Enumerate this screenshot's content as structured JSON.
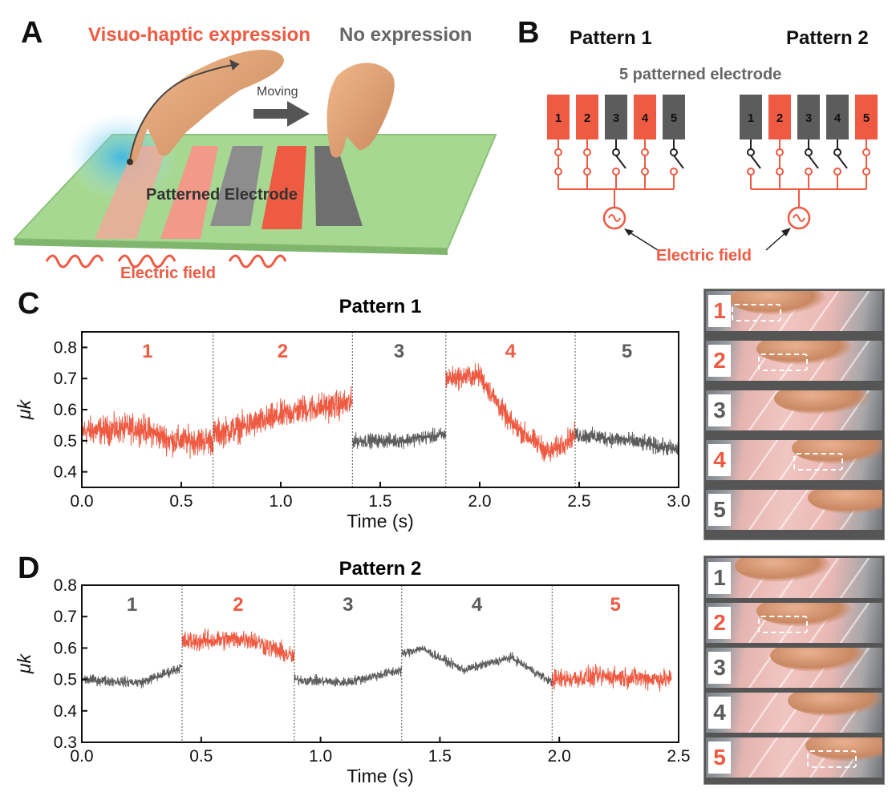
{
  "panel_letters": {
    "a": "A",
    "b": "B",
    "c": "C",
    "d": "D"
  },
  "panel_a": {
    "visuo_haptic_label": "Visuo-haptic expression",
    "no_expression_label": "No expression",
    "moving_label": "Moving",
    "electrode_label": "Patterned Electrode",
    "field_label": "Electric field"
  },
  "panel_b": {
    "pattern1_title": "Pattern 1",
    "pattern2_title": "Pattern 2",
    "subtitle": "5 patterned electrode",
    "field_label": "Electric field",
    "electrode_numbers": [
      "1",
      "2",
      "3",
      "4",
      "5"
    ],
    "pattern1_active": [
      true,
      true,
      false,
      true,
      false
    ],
    "pattern2_active": [
      false,
      true,
      false,
      false,
      true
    ]
  },
  "colors": {
    "active": "#ee5a42",
    "inactive": "#5c5c5c",
    "divider": "#555555"
  },
  "chart_data": [
    {
      "type": "line",
      "title": "Pattern 1",
      "xlabel": "Time (s)",
      "ylabel": "μk",
      "xlim": [
        0.0,
        3.0
      ],
      "ylim": [
        0.35,
        0.85
      ],
      "xticks": [
        "0.0",
        "0.5",
        "1.0",
        "1.5",
        "2.0",
        "2.5",
        "3.0"
      ],
      "yticks": [
        "0.4",
        "0.5",
        "0.6",
        "0.7",
        "0.8"
      ],
      "boundaries": [
        0.66,
        1.36,
        1.83,
        2.48
      ],
      "segment_labels": [
        "1",
        "2",
        "3",
        "4",
        "5"
      ],
      "segment_active": [
        true,
        true,
        false,
        true,
        false
      ],
      "segments": [
        {
          "t": [
            0.0,
            0.66
          ],
          "trend": [
            [
              0.0,
              0.53
            ],
            [
              0.3,
              0.54
            ],
            [
              0.45,
              0.5
            ],
            [
              0.66,
              0.5
            ]
          ],
          "noise": 0.07
        },
        {
          "t": [
            0.66,
            1.36
          ],
          "trend": [
            [
              0.66,
              0.52
            ],
            [
              0.9,
              0.56
            ],
            [
              1.1,
              0.6
            ],
            [
              1.36,
              0.62
            ]
          ],
          "noise": 0.07
        },
        {
          "t": [
            1.36,
            1.83
          ],
          "trend": [
            [
              1.36,
              0.5
            ],
            [
              1.6,
              0.5
            ],
            [
              1.83,
              0.52
            ]
          ],
          "noise": 0.035
        },
        {
          "t": [
            1.83,
            2.48
          ],
          "trend": [
            [
              1.83,
              0.7
            ],
            [
              2.0,
              0.71
            ],
            [
              2.15,
              0.56
            ],
            [
              2.35,
              0.46
            ],
            [
              2.48,
              0.52
            ]
          ],
          "noise": 0.055
        },
        {
          "t": [
            2.48,
            3.0
          ],
          "trend": [
            [
              2.48,
              0.52
            ],
            [
              2.75,
              0.5
            ],
            [
              3.0,
              0.47
            ]
          ],
          "noise": 0.04
        }
      ]
    },
    {
      "type": "line",
      "title": "Pattern 2",
      "xlabel": "Time (s)",
      "ylabel": "μk",
      "xlim": [
        0.0,
        2.5
      ],
      "ylim": [
        0.3,
        0.8
      ],
      "xticks": [
        "0.0",
        "0.5",
        "1.0",
        "1.5",
        "2.0",
        "2.5"
      ],
      "yticks": [
        "0.3",
        "0.4",
        "0.5",
        "0.6",
        "0.7",
        "0.8"
      ],
      "boundaries": [
        0.42,
        0.89,
        1.34,
        1.97
      ],
      "segment_labels": [
        "1",
        "2",
        "3",
        "4",
        "5"
      ],
      "segment_active": [
        false,
        true,
        false,
        false,
        true
      ],
      "segments": [
        {
          "t": [
            0.0,
            0.42
          ],
          "trend": [
            [
              0.0,
              0.5
            ],
            [
              0.25,
              0.49
            ],
            [
              0.42,
              0.54
            ]
          ],
          "noise": 0.025
        },
        {
          "t": [
            0.42,
            0.89
          ],
          "trend": [
            [
              0.42,
              0.62
            ],
            [
              0.7,
              0.63
            ],
            [
              0.89,
              0.57
            ]
          ],
          "noise": 0.05
        },
        {
          "t": [
            0.89,
            1.34
          ],
          "trend": [
            [
              0.89,
              0.5
            ],
            [
              1.1,
              0.49
            ],
            [
              1.34,
              0.53
            ]
          ],
          "noise": 0.025
        },
        {
          "t": [
            1.34,
            1.97
          ],
          "trend": [
            [
              1.34,
              0.58
            ],
            [
              1.42,
              0.6
            ],
            [
              1.6,
              0.53
            ],
            [
              1.8,
              0.57
            ],
            [
              1.97,
              0.49
            ]
          ],
          "noise": 0.022
        },
        {
          "t": [
            1.97,
            2.47
          ],
          "trend": [
            [
              1.97,
              0.5
            ],
            [
              2.2,
              0.51
            ],
            [
              2.47,
              0.5
            ]
          ],
          "noise": 0.05
        }
      ]
    }
  ],
  "frames_c": [
    {
      "label": "1",
      "active": true,
      "box": true,
      "finger": 0.0
    },
    {
      "label": "2",
      "active": true,
      "box": true,
      "finger": 0.3
    },
    {
      "label": "3",
      "active": false,
      "box": false,
      "finger": 0.5
    },
    {
      "label": "4",
      "active": true,
      "box": true,
      "finger": 0.7
    },
    {
      "label": "5",
      "active": false,
      "box": false,
      "finger": 0.88
    }
  ],
  "frames_d": [
    {
      "label": "1",
      "active": false,
      "box": false,
      "finger": 0.05
    },
    {
      "label": "2",
      "active": true,
      "box": true,
      "finger": 0.3
    },
    {
      "label": "3",
      "active": false,
      "box": false,
      "finger": 0.45
    },
    {
      "label": "4",
      "active": false,
      "box": false,
      "finger": 0.65
    },
    {
      "label": "5",
      "active": true,
      "box": true,
      "finger": 0.85
    }
  ]
}
